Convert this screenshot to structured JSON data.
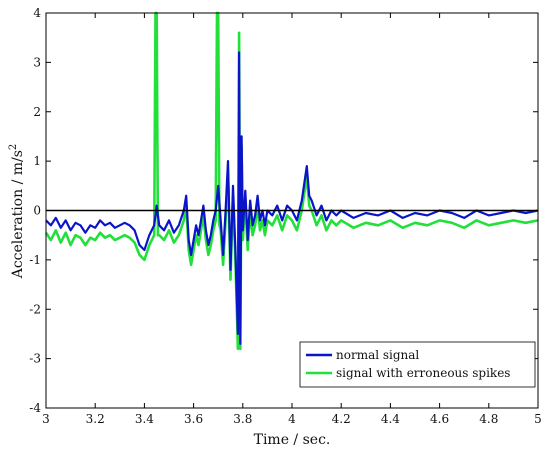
{
  "chart_data": {
    "type": "line",
    "title": "",
    "xlabel": "Time / sec.",
    "ylabel": "Acceleration / m/s",
    "ylabel_superscript": "2",
    "xlim": [
      3,
      5
    ],
    "ylim": [
      -4,
      4
    ],
    "xticks": [
      "3",
      "3.2",
      "3.4",
      "3.6",
      "3.8",
      "4",
      "4.2",
      "4.4",
      "4.6",
      "4.8",
      "5"
    ],
    "yticks": [
      "-4",
      "-3",
      "-2",
      "-1",
      "0",
      "1",
      "2",
      "3",
      "4"
    ],
    "grid": false,
    "zero_line": true,
    "legend": {
      "placement": "bottom-right"
    },
    "series": [
      {
        "name": "normal signal",
        "color": "#0a14c8",
        "x": [
          3.0,
          3.02,
          3.04,
          3.06,
          3.08,
          3.1,
          3.12,
          3.14,
          3.16,
          3.18,
          3.2,
          3.22,
          3.24,
          3.26,
          3.28,
          3.3,
          3.32,
          3.34,
          3.36,
          3.38,
          3.4,
          3.42,
          3.44,
          3.45,
          3.46,
          3.48,
          3.5,
          3.52,
          3.54,
          3.56,
          3.57,
          3.58,
          3.59,
          3.6,
          3.61,
          3.62,
          3.63,
          3.64,
          3.65,
          3.66,
          3.67,
          3.68,
          3.69,
          3.7,
          3.71,
          3.72,
          3.73,
          3.74,
          3.75,
          3.76,
          3.77,
          3.78,
          3.785,
          3.79,
          3.795,
          3.8,
          3.81,
          3.82,
          3.83,
          3.84,
          3.85,
          3.86,
          3.87,
          3.88,
          3.89,
          3.9,
          3.92,
          3.94,
          3.96,
          3.98,
          4.0,
          4.02,
          4.04,
          4.06,
          4.07,
          4.08,
          4.1,
          4.12,
          4.14,
          4.16,
          4.18,
          4.2,
          4.25,
          4.3,
          4.35,
          4.4,
          4.45,
          4.5,
          4.55,
          4.6,
          4.65,
          4.7,
          4.75,
          4.8,
          4.85,
          4.9,
          4.95,
          5.0
        ],
        "y": [
          -0.2,
          -0.3,
          -0.15,
          -0.35,
          -0.2,
          -0.4,
          -0.25,
          -0.3,
          -0.45,
          -0.3,
          -0.35,
          -0.2,
          -0.3,
          -0.25,
          -0.35,
          -0.3,
          -0.25,
          -0.3,
          -0.4,
          -0.7,
          -0.8,
          -0.5,
          -0.3,
          0.1,
          -0.3,
          -0.4,
          -0.2,
          -0.45,
          -0.3,
          0.0,
          0.3,
          -0.6,
          -0.9,
          -0.6,
          -0.3,
          -0.5,
          -0.2,
          0.1,
          -0.4,
          -0.7,
          -0.5,
          -0.2,
          0.0,
          0.5,
          -0.2,
          -0.9,
          0.0,
          1.0,
          -1.2,
          0.5,
          -0.8,
          -2.5,
          3.2,
          -2.7,
          1.5,
          -0.4,
          0.4,
          -0.6,
          0.2,
          -0.3,
          -0.1,
          0.3,
          -0.2,
          0.0,
          -0.3,
          0.0,
          -0.1,
          0.1,
          -0.2,
          0.1,
          0.0,
          -0.2,
          0.2,
          0.9,
          0.3,
          0.2,
          -0.1,
          0.1,
          -0.2,
          0.0,
          -0.1,
          0.0,
          -0.15,
          -0.05,
          -0.1,
          0.0,
          -0.15,
          -0.05,
          -0.1,
          0.0,
          -0.05,
          -0.15,
          0.0,
          -0.1,
          -0.05,
          0.0,
          -0.05,
          0.0
        ]
      },
      {
        "name": "signal with erroneous spikes",
        "color": "#22e03a",
        "x": [
          3.0,
          3.02,
          3.04,
          3.06,
          3.08,
          3.1,
          3.12,
          3.14,
          3.16,
          3.18,
          3.2,
          3.22,
          3.24,
          3.26,
          3.28,
          3.3,
          3.32,
          3.34,
          3.36,
          3.38,
          3.4,
          3.42,
          3.44,
          3.445,
          3.45,
          3.455,
          3.46,
          3.48,
          3.5,
          3.52,
          3.54,
          3.56,
          3.57,
          3.58,
          3.59,
          3.6,
          3.61,
          3.62,
          3.63,
          3.64,
          3.65,
          3.66,
          3.67,
          3.68,
          3.69,
          3.695,
          3.7,
          3.705,
          3.71,
          3.72,
          3.73,
          3.74,
          3.75,
          3.76,
          3.77,
          3.78,
          3.785,
          3.79,
          3.795,
          3.8,
          3.81,
          3.82,
          3.83,
          3.84,
          3.85,
          3.86,
          3.87,
          3.88,
          3.89,
          3.9,
          3.92,
          3.94,
          3.96,
          3.98,
          4.0,
          4.02,
          4.04,
          4.06,
          4.07,
          4.08,
          4.1,
          4.12,
          4.14,
          4.16,
          4.18,
          4.2,
          4.25,
          4.3,
          4.35,
          4.4,
          4.45,
          4.5,
          4.55,
          4.6,
          4.65,
          4.7,
          4.75,
          4.8,
          4.85,
          4.9,
          4.95,
          5.0
        ],
        "y": [
          -0.45,
          -0.6,
          -0.4,
          -0.65,
          -0.45,
          -0.7,
          -0.5,
          -0.55,
          -0.7,
          -0.55,
          -0.6,
          -0.45,
          -0.55,
          -0.5,
          -0.6,
          -0.55,
          -0.5,
          -0.55,
          -0.65,
          -0.9,
          -1.0,
          -0.7,
          -0.5,
          4.0,
          4.0,
          -0.5,
          -0.5,
          -0.6,
          -0.4,
          -0.65,
          -0.5,
          -0.2,
          0.1,
          -0.8,
          -1.1,
          -0.8,
          -0.5,
          -0.7,
          -0.4,
          -0.1,
          -0.6,
          -0.9,
          -0.7,
          -0.4,
          -0.2,
          4.0,
          4.0,
          -0.3,
          -0.4,
          -1.1,
          -0.2,
          0.8,
          -1.4,
          0.3,
          -1.0,
          -2.8,
          3.6,
          -2.8,
          1.3,
          -0.6,
          0.2,
          -0.8,
          0.0,
          -0.5,
          -0.3,
          0.1,
          -0.4,
          -0.2,
          -0.5,
          -0.2,
          -0.3,
          -0.1,
          -0.4,
          -0.1,
          -0.2,
          -0.4,
          0.0,
          0.7,
          0.1,
          0.0,
          -0.3,
          -0.1,
          -0.4,
          -0.2,
          -0.3,
          -0.2,
          -0.35,
          -0.25,
          -0.3,
          -0.2,
          -0.35,
          -0.25,
          -0.3,
          -0.2,
          -0.25,
          -0.35,
          -0.2,
          -0.3,
          -0.25,
          -0.2,
          -0.25,
          -0.2
        ]
      }
    ]
  }
}
